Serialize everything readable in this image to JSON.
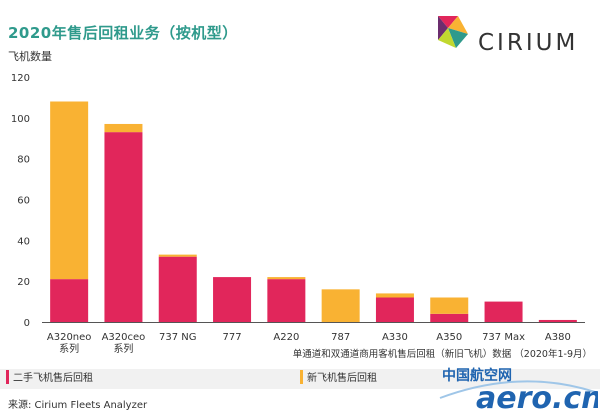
{
  "header": {
    "title": "2020年售后回租业务（按机型）",
    "logo_text": "CIRIUM"
  },
  "legend": {
    "used": "二手飞机售后回租",
    "new": "新飞机售后回租"
  },
  "footer": {
    "source": "来源:   Cirium Fleets Analyzer"
  },
  "watermark": {
    "cn": "中国航空网",
    "en": "aero.cn"
  },
  "colors": {
    "used": "#e1265b",
    "new": "#f9b233",
    "title": "#2f9a8c"
  },
  "chart_data": {
    "type": "bar",
    "stacked": true,
    "ylabel": "飞机数量",
    "xlabel": "单通道和双通道商用客机售后回租（新旧飞机）数据 （2020年1-9月）",
    "ylim": [
      0,
      120
    ],
    "yticks": [
      0,
      20,
      40,
      60,
      80,
      100,
      120
    ],
    "grid": false,
    "legend_position": "bottom",
    "categories": [
      [
        "A320neo",
        "系列"
      ],
      [
        "A320ceo",
        "系列"
      ],
      [
        "737 NG"
      ],
      [
        "777"
      ],
      [
        "A220"
      ],
      [
        "787"
      ],
      [
        "A330"
      ],
      [
        "A350"
      ],
      [
        "737 Max"
      ],
      [
        "A380"
      ]
    ],
    "series": [
      {
        "name": "二手飞机售后回租",
        "color": "#e1265b",
        "values": [
          21,
          93,
          32,
          22,
          21,
          0,
          12,
          4,
          10,
          1
        ]
      },
      {
        "name": "新飞机售后回租",
        "color": "#f9b233",
        "values": [
          87,
          4,
          1,
          0,
          1,
          16,
          2,
          8,
          0,
          0
        ]
      }
    ]
  }
}
